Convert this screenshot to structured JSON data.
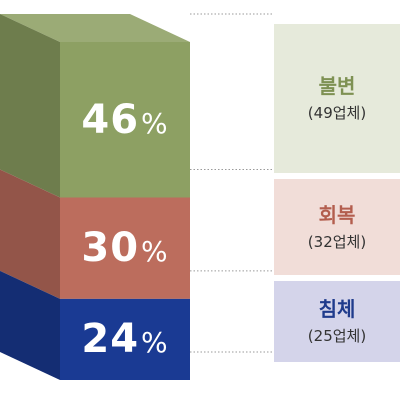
{
  "chart_data": {
    "type": "stacked-bar",
    "unit": "%",
    "segments": [
      {
        "label": "불변",
        "count_text": "(49업체)",
        "value": 46,
        "value_text": "46",
        "color": "#8da063",
        "label_bg": "#e6eadb",
        "label_color": "#7e9153"
      },
      {
        "label": "회복",
        "count_text": "(32업체)",
        "value": 30,
        "value_text": "30",
        "color": "#bc6d5d",
        "label_bg": "#f1ddd8",
        "label_color": "#b35e4e"
      },
      {
        "label": "침체",
        "count_text": "(25업체)",
        "value": 24,
        "value_text": "24",
        "color": "#1a3a93",
        "label_bg": "#d4d4ea",
        "label_color": "#1f3b8c"
      }
    ]
  }
}
